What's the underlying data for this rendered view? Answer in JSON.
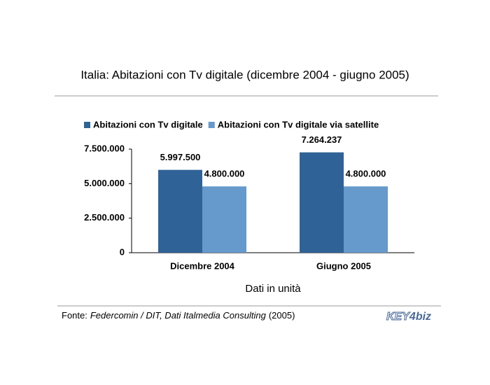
{
  "chart_data": {
    "type": "bar",
    "title": "Italia: Abitazioni con Tv digitale (dicembre 2004 - giugno 2005)",
    "categories": [
      "Dicembre 2004",
      "Giugno 2005"
    ],
    "series": [
      {
        "name": "Abitazioni con Tv digitale",
        "color": "#2f6397",
        "values": [
          5997500,
          7264237
        ],
        "value_labels": [
          "5.997.500",
          "7.264.237"
        ]
      },
      {
        "name": "Abitazioni con Tv digitale via satellite",
        "color": "#6699cc",
        "values": [
          4800000,
          4800000
        ],
        "value_labels": [
          "4.800.000",
          "4.800.000"
        ]
      }
    ],
    "ylim": [
      0,
      7500000
    ],
    "yticks": [
      0,
      {
        "value": 2500000,
        "label": "2.500.000"
      },
      {
        "value": 5000000,
        "label": "5.000.000"
      },
      {
        "value": 7500000,
        "label": "7.500.000"
      }
    ],
    "xlabel": "Dati in unità",
    "legend": "top",
    "source": [
      "Fonte:",
      "Federcomin / DIT, Dati Italmedia Consulting",
      "(2005)"
    ],
    "logo": [
      "KEY",
      "4",
      "biz"
    ]
  }
}
